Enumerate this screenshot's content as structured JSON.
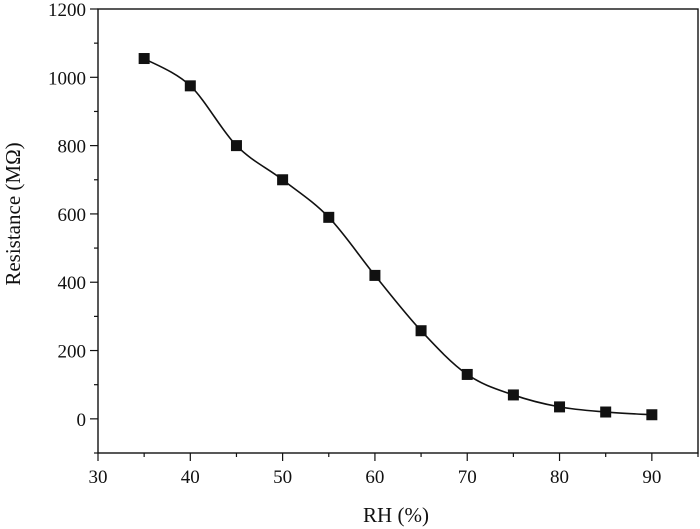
{
  "chart_data": {
    "type": "scatter",
    "title": "",
    "xlabel": "RH (%)",
    "ylabel": "Resistance (MΩ)",
    "xlim": [
      30,
      95
    ],
    "ylim": [
      -100,
      1200
    ],
    "x_ticks": [
      30,
      40,
      50,
      60,
      70,
      80,
      90
    ],
    "y_ticks": [
      0,
      200,
      400,
      600,
      800,
      1000,
      1200
    ],
    "grid": false,
    "legend": "none",
    "marker": "square",
    "line": "smooth",
    "color": "#111111",
    "series": [
      {
        "x": [
          35,
          40,
          45,
          50,
          55,
          60,
          65,
          70,
          75,
          80,
          85,
          90
        ],
        "y": [
          1055,
          975,
          800,
          700,
          590,
          420,
          258,
          130,
          70,
          35,
          20,
          12
        ]
      }
    ]
  }
}
